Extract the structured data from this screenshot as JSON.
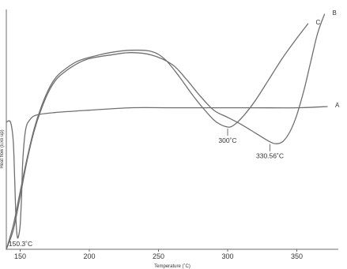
{
  "chart_data": {
    "type": "line",
    "title": "",
    "xlabel": "Temperature (˚C)",
    "ylabel": "Heat flow (Exo up)",
    "xlim": [
      140,
      380
    ],
    "ylim": [
      0,
      100
    ],
    "x_ticks": [
      150,
      200,
      250,
      300,
      350
    ],
    "y_ticks": [],
    "grid": false,
    "legend": "curve labels at right end of each line",
    "series": [
      {
        "name": "A",
        "points": [
          [
            140,
            53
          ],
          [
            143,
            53
          ],
          [
            145,
            45
          ],
          [
            146,
            30
          ],
          [
            147,
            12
          ],
          [
            148,
            5
          ],
          [
            149,
            6
          ],
          [
            150,
            10
          ],
          [
            151,
            22
          ],
          [
            152,
            38
          ],
          [
            154,
            50
          ],
          [
            157,
            54
          ],
          [
            162,
            56
          ],
          [
            175,
            57
          ],
          [
            200,
            58
          ],
          [
            230,
            59
          ],
          [
            260,
            59
          ],
          [
            290,
            59
          ],
          [
            320,
            59
          ],
          [
            350,
            59
          ],
          [
            372,
            59.5
          ]
        ]
      },
      {
        "name": "B",
        "points": [
          [
            140,
            0
          ],
          [
            145,
            8
          ],
          [
            150,
            22
          ],
          [
            155,
            37
          ],
          [
            160,
            49
          ],
          [
            165,
            58
          ],
          [
            170,
            65
          ],
          [
            175,
            70
          ],
          [
            180,
            73
          ],
          [
            190,
            77
          ],
          [
            200,
            79.5
          ],
          [
            215,
            81
          ],
          [
            230,
            82
          ],
          [
            245,
            81
          ],
          [
            260,
            77
          ],
          [
            270,
            71
          ],
          [
            280,
            64
          ],
          [
            290,
            58
          ],
          [
            300,
            55
          ],
          [
            310,
            52
          ],
          [
            320,
            48.5
          ],
          [
            330,
            45
          ],
          [
            335,
            44
          ],
          [
            340,
            45
          ],
          [
            345,
            49
          ],
          [
            350,
            56
          ],
          [
            355,
            66
          ],
          [
            360,
            78
          ],
          [
            365,
            90
          ],
          [
            370,
            98
          ]
        ]
      },
      {
        "name": "C",
        "points": [
          [
            140,
            0
          ],
          [
            145,
            10
          ],
          [
            150,
            24
          ],
          [
            155,
            38
          ],
          [
            160,
            50
          ],
          [
            165,
            59
          ],
          [
            170,
            66
          ],
          [
            175,
            71
          ],
          [
            180,
            74
          ],
          [
            190,
            78
          ],
          [
            200,
            80
          ],
          [
            215,
            82
          ],
          [
            230,
            83
          ],
          [
            245,
            82.5
          ],
          [
            255,
            79
          ],
          [
            265,
            72
          ],
          [
            275,
            64
          ],
          [
            285,
            57
          ],
          [
            292,
            53
          ],
          [
            300,
            51
          ],
          [
            305,
            52
          ],
          [
            312,
            56
          ],
          [
            320,
            62
          ],
          [
            330,
            71
          ],
          [
            340,
            80
          ],
          [
            350,
            88
          ],
          [
            358,
            94
          ]
        ]
      }
    ],
    "annotations": [
      {
        "text": "150.3˚C",
        "x": 150.3,
        "y": 5
      },
      {
        "text": "300˚C",
        "x": 300,
        "y": 51
      },
      {
        "text": "330.56˚C",
        "x": 330.56,
        "y": 44.5
      }
    ]
  }
}
